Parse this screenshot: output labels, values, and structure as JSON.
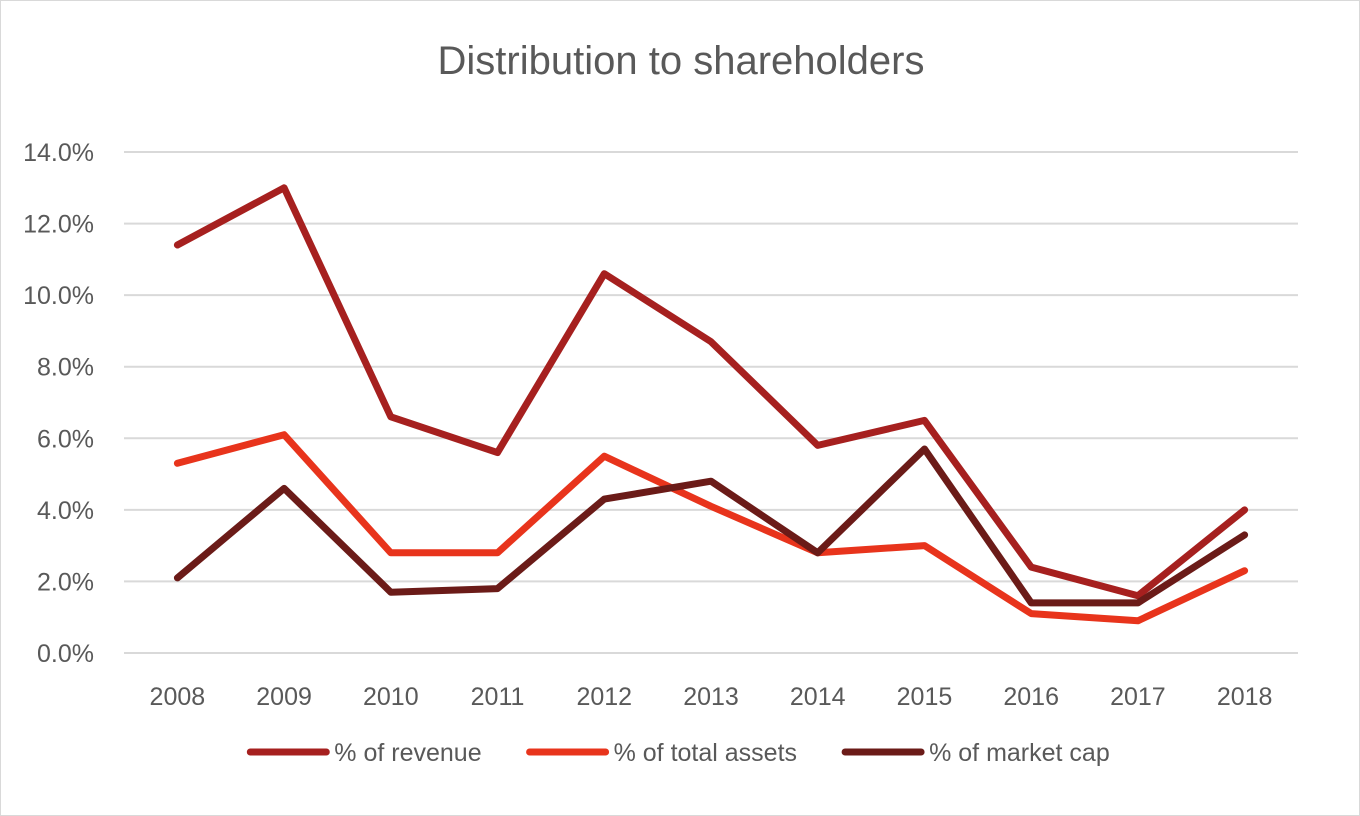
{
  "chart_data": {
    "type": "line",
    "title": "Distribution to shareholders",
    "xlabel": "",
    "ylabel": "",
    "categories": [
      "2008",
      "2009",
      "2010",
      "2011",
      "2012",
      "2013",
      "2014",
      "2015",
      "2016",
      "2017",
      "2018"
    ],
    "ylim": [
      0,
      14
    ],
    "yticks": [
      0,
      2,
      4,
      6,
      8,
      10,
      12,
      14
    ],
    "ytick_labels": [
      "0.0%",
      "2.0%",
      "4.0%",
      "6.0%",
      "8.0%",
      "10.0%",
      "12.0%",
      "14.0%"
    ],
    "grid": true,
    "legend_position": "bottom",
    "series": [
      {
        "name": "% of revenue",
        "color": "#a6201f",
        "values": [
          11.4,
          13.0,
          6.6,
          5.6,
          10.6,
          8.7,
          5.8,
          6.5,
          2.4,
          1.6,
          4.0
        ]
      },
      {
        "name": "% of total assets",
        "color": "#e8341c",
        "values": [
          5.3,
          6.1,
          2.8,
          2.8,
          5.5,
          4.1,
          2.8,
          3.0,
          1.1,
          0.9,
          2.3
        ]
      },
      {
        "name": "% of market cap",
        "color": "#6b1b18",
        "values": [
          2.1,
          4.6,
          1.7,
          1.8,
          4.3,
          4.8,
          2.8,
          5.7,
          1.4,
          1.4,
          3.3
        ]
      }
    ]
  }
}
